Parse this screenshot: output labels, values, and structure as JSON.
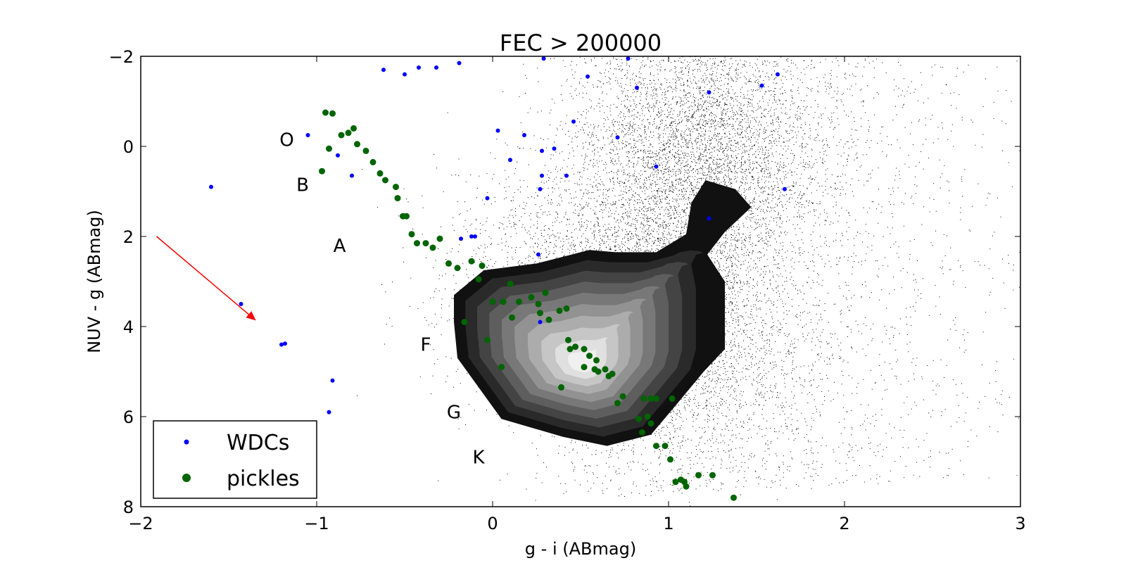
{
  "chart_data": {
    "type": "scatter",
    "title": "FEC > 200000",
    "xlabel": "g - i (ABmag)",
    "ylabel": "NUV - g (ABmag)",
    "xlim": [
      -2,
      3
    ],
    "ylim": [
      8,
      -2
    ],
    "y_inverted": true,
    "xticks": [
      -2,
      -1,
      0,
      1,
      2,
      3
    ],
    "xtick_labels": [
      "−2",
      "−1",
      "0",
      "1",
      "2",
      "3"
    ],
    "yticks": [
      -2,
      0,
      2,
      4,
      6,
      8
    ],
    "ytick_labels": [
      "−2",
      "0",
      "2",
      "4",
      "6",
      "8"
    ],
    "grid": false,
    "legend_position": "lower-left",
    "background_field": {
      "description_source": "dense black point field with grey filled density contours",
      "color": "#000000",
      "contour_fills": [
        "#111111",
        "#2a2a2a",
        "#444444",
        "#5e5e5e",
        "#787878",
        "#929292",
        "#acacac",
        "#c6c6c6",
        "#e0e0e0",
        "#f0f0f0"
      ]
    },
    "series": [
      {
        "name": "WDCs",
        "color": "#0000ff",
        "marker_size": "small",
        "points": [
          [
            -1.6,
            0.9
          ],
          [
            -1.43,
            3.5
          ],
          [
            -1.2,
            4.4
          ],
          [
            -1.18,
            4.38
          ],
          [
            -0.91,
            5.2
          ],
          [
            -0.93,
            5.9
          ],
          [
            -1.05,
            -0.25
          ],
          [
            -0.88,
            0.2
          ],
          [
            -0.8,
            0.65
          ],
          [
            -0.62,
            -1.7
          ],
          [
            -0.5,
            -1.6
          ],
          [
            -0.42,
            -1.75
          ],
          [
            -0.32,
            -1.75
          ],
          [
            -0.19,
            -1.85
          ],
          [
            0.29,
            -1.95
          ],
          [
            0.54,
            -1.55
          ],
          [
            0.82,
            -1.3
          ],
          [
            0.77,
            -1.95
          ],
          [
            1.23,
            -1.2
          ],
          [
            1.53,
            -1.35
          ],
          [
            1.62,
            -1.6
          ],
          [
            0.71,
            -0.2
          ],
          [
            0.93,
            0.45
          ],
          [
            1.23,
            1.6
          ],
          [
            1.66,
            0.95
          ],
          [
            0.27,
            3.9
          ],
          [
            0.26,
            2.4
          ],
          [
            -0.1,
            2.0
          ],
          [
            0.1,
            0.3
          ],
          [
            0.28,
            0.65
          ],
          [
            0.42,
            0.65
          ],
          [
            0.35,
            0.05
          ],
          [
            0.46,
            -0.55
          ],
          [
            0.03,
            -0.35
          ],
          [
            0.18,
            -0.25
          ],
          [
            0.27,
            0.95
          ],
          [
            0.28,
            0.1
          ],
          [
            -0.03,
            1.15
          ],
          [
            -0.18,
            2.05
          ],
          [
            -0.12,
            2.0
          ]
        ]
      },
      {
        "name": "pickles",
        "color": "#006400",
        "marker_size": "large",
        "points": [
          [
            -0.95,
            -0.75
          ],
          [
            -0.91,
            -0.73
          ],
          [
            -0.86,
            -0.25
          ],
          [
            -0.82,
            -0.3
          ],
          [
            -0.79,
            -0.4
          ],
          [
            -0.77,
            -0.05
          ],
          [
            -0.72,
            0.1
          ],
          [
            -0.68,
            0.35
          ],
          [
            -0.64,
            0.6
          ],
          [
            -0.61,
            0.75
          ],
          [
            -0.55,
            0.9
          ],
          [
            -0.97,
            0.55
          ],
          [
            -0.93,
            0.05
          ],
          [
            -0.54,
            1.15
          ],
          [
            -0.51,
            1.55
          ],
          [
            -0.49,
            1.55
          ],
          [
            -0.46,
            1.95
          ],
          [
            -0.43,
            2.15
          ],
          [
            -0.38,
            2.15
          ],
          [
            -0.34,
            2.25
          ],
          [
            -0.3,
            2.05
          ],
          [
            -0.25,
            2.6
          ],
          [
            -0.2,
            2.7
          ],
          [
            -0.12,
            2.55
          ],
          [
            -0.06,
            2.65
          ],
          [
            -0.08,
            2.95
          ],
          [
            0.1,
            3.05
          ],
          [
            0.06,
            3.45
          ],
          [
            0.15,
            3.45
          ],
          [
            0.22,
            3.35
          ],
          [
            0.26,
            3.5
          ],
          [
            0.3,
            3.25
          ],
          [
            0.27,
            3.7
          ],
          [
            0.32,
            3.85
          ],
          [
            0.38,
            3.65
          ],
          [
            0.42,
            3.6
          ],
          [
            0.43,
            4.3
          ],
          [
            0.44,
            4.5
          ],
          [
            0.47,
            4.45
          ],
          [
            0.52,
            4.5
          ],
          [
            0.52,
            4.9
          ],
          [
            0.55,
            4.65
          ],
          [
            0.59,
            4.75
          ],
          [
            0.58,
            4.95
          ],
          [
            0.6,
            5.0
          ],
          [
            0.64,
            4.95
          ],
          [
            0.66,
            5.1
          ],
          [
            0.68,
            5.05
          ],
          [
            -0.16,
            3.9
          ],
          [
            -0.03,
            4.3
          ],
          [
            0.0,
            3.45
          ],
          [
            0.05,
            4.9
          ],
          [
            0.11,
            3.8
          ],
          [
            0.39,
            5.35
          ],
          [
            0.71,
            5.7
          ],
          [
            0.74,
            5.55
          ],
          [
            0.83,
            6.05
          ],
          [
            0.85,
            6.35
          ],
          [
            0.88,
            6.0
          ],
          [
            0.9,
            6.15
          ],
          [
            0.86,
            5.6
          ],
          [
            0.9,
            5.6
          ],
          [
            0.93,
            5.6
          ],
          [
            0.93,
            6.65
          ],
          [
            0.98,
            6.65
          ],
          [
            1.01,
            6.95
          ],
          [
            1.02,
            5.6
          ],
          [
            1.04,
            7.45
          ],
          [
            1.07,
            7.4
          ],
          [
            1.09,
            7.45
          ],
          [
            1.1,
            7.55
          ],
          [
            1.17,
            7.3
          ],
          [
            1.25,
            7.3
          ],
          [
            1.37,
            7.8
          ]
        ]
      }
    ],
    "annotations": [
      {
        "text": "O",
        "x": -1.17,
        "y": -0.15
      },
      {
        "text": "B",
        "x": -1.08,
        "y": 0.85
      },
      {
        "text": "A",
        "x": -0.87,
        "y": 2.2
      },
      {
        "text": "F",
        "x": -0.38,
        "y": 4.4
      },
      {
        "text": "G",
        "x": -0.22,
        "y": 5.9
      },
      {
        "text": "K",
        "x": -0.08,
        "y": 6.9
      }
    ],
    "arrow": {
      "color": "#ff0000",
      "from": [
        -1.91,
        2.0
      ],
      "to": [
        -1.35,
        3.85
      ]
    },
    "legend": {
      "entries": [
        {
          "label": "WDCs",
          "color": "#0000ff"
        },
        {
          "label": "pickles",
          "color": "#006400"
        }
      ]
    }
  }
}
